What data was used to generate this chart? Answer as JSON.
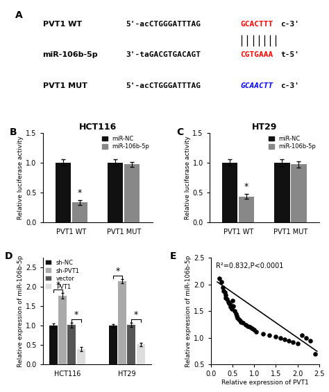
{
  "panel_A": {
    "row1_label": "PVT1 WT",
    "row1_prefix": "5'-acCTGGGATTTAG",
    "row1_highlight": "GCACTTT",
    "row1_suffix": "c-3'",
    "row1_highlight_color": "red",
    "row2_label": "miR-106b-5p",
    "row2_prefix": "3'-taGACGTGACAGT",
    "row2_highlight": "CGTGAAA",
    "row2_suffix": "t-5'",
    "row2_highlight_color": "red",
    "row3_label": "PVT1 MUT",
    "row3_prefix": "5'-acCTGGGATTTAG",
    "row3_highlight": "GCAACTT",
    "row3_suffix": "c-3'",
    "row3_highlight_color": "blue"
  },
  "panel_B": {
    "title": "HCT116",
    "ylabel": "Relative luciferase activity",
    "groups": [
      "PVT1 WT",
      "PVT1 MUT"
    ],
    "series": [
      {
        "name": "miR-NC",
        "color": "#111111",
        "values": [
          1.0,
          1.0
        ],
        "errors": [
          0.05,
          0.05
        ]
      },
      {
        "name": "miR-106b-5p",
        "color": "#888888",
        "values": [
          0.33,
          0.97
        ],
        "errors": [
          0.04,
          0.04
        ]
      }
    ],
    "ylim": [
      0,
      1.5
    ],
    "yticks": [
      0.0,
      0.5,
      1.0,
      1.5
    ],
    "star_positions": [
      {
        "group": 0,
        "bar": 1
      }
    ]
  },
  "panel_C": {
    "title": "HT29",
    "ylabel": "Relative luciferase activity",
    "groups": [
      "PVT1 WT",
      "PVT1 MUT"
    ],
    "series": [
      {
        "name": "miR-NC",
        "color": "#111111",
        "values": [
          1.0,
          1.0
        ],
        "errors": [
          0.05,
          0.06
        ]
      },
      {
        "name": "miR-106b-5p",
        "color": "#888888",
        "values": [
          0.43,
          0.97
        ],
        "errors": [
          0.04,
          0.05
        ]
      }
    ],
    "ylim": [
      0,
      1.5
    ],
    "yticks": [
      0.0,
      0.5,
      1.0,
      1.5
    ],
    "star_positions": [
      {
        "group": 0,
        "bar": 1
      }
    ]
  },
  "panel_D": {
    "ylabel": "Relative expression of miR-106b-5p",
    "groups": [
      "HCT116",
      "HT29"
    ],
    "series": [
      {
        "name": "sh-NC",
        "color": "#111111",
        "values": [
          1.0,
          1.0
        ],
        "errors": [
          0.06,
          0.05
        ]
      },
      {
        "name": "sh-PVT1",
        "color": "#aaaaaa",
        "values": [
          1.78,
          2.15
        ],
        "errors": [
          0.07,
          0.06
        ]
      },
      {
        "name": "vector",
        "color": "#555555",
        "values": [
          1.02,
          1.02
        ],
        "errors": [
          0.06,
          0.05
        ]
      },
      {
        "name": "PVT1",
        "color": "#dddddd",
        "values": [
          0.4,
          0.52
        ],
        "errors": [
          0.05,
          0.04
        ]
      }
    ],
    "ylim": [
      0,
      2.75
    ],
    "yticks": [
      0.0,
      0.5,
      1.0,
      1.5,
      2.0,
      2.5
    ]
  },
  "panel_E": {
    "xlabel": "Relative expression of PVT1",
    "ylabel": "Relative expression of miR-106b-5p",
    "annotation": "R²=0.832,P<0.0001",
    "xlim": [
      0.0,
      2.5
    ],
    "ylim": [
      0.5,
      2.5
    ],
    "xticks": [
      0.0,
      0.5,
      1.0,
      1.5,
      2.0,
      2.5
    ],
    "yticks": [
      0.5,
      1.0,
      1.5,
      2.0,
      2.5
    ],
    "scatter_x": [
      0.2,
      0.25,
      0.28,
      0.3,
      0.32,
      0.35,
      0.35,
      0.38,
      0.4,
      0.42,
      0.45,
      0.45,
      0.48,
      0.5,
      0.52,
      0.55,
      0.58,
      0.6,
      0.62,
      0.65,
      0.68,
      0.7,
      0.75,
      0.8,
      0.85,
      0.9,
      0.95,
      1.0,
      1.05,
      1.2,
      1.35,
      1.5,
      1.6,
      1.7,
      1.8,
      1.9,
      2.0,
      2.1,
      2.2,
      2.3,
      2.4
    ],
    "scatter_y": [
      2.12,
      2.05,
      1.95,
      1.88,
      1.85,
      1.8,
      1.75,
      1.72,
      1.68,
      1.65,
      1.62,
      1.58,
      1.55,
      1.7,
      1.6,
      1.5,
      1.45,
      1.42,
      1.38,
      1.35,
      1.32,
      1.3,
      1.28,
      1.25,
      1.22,
      1.2,
      1.18,
      1.15,
      1.12,
      1.08,
      1.05,
      1.02,
      1.0,
      0.97,
      0.95,
      0.92,
      0.9,
      1.05,
      1.0,
      0.95,
      0.7
    ],
    "line_x": [
      0.15,
      2.45
    ],
    "line_y": [
      2.05,
      0.75
    ]
  },
  "bg_color": "#ffffff"
}
